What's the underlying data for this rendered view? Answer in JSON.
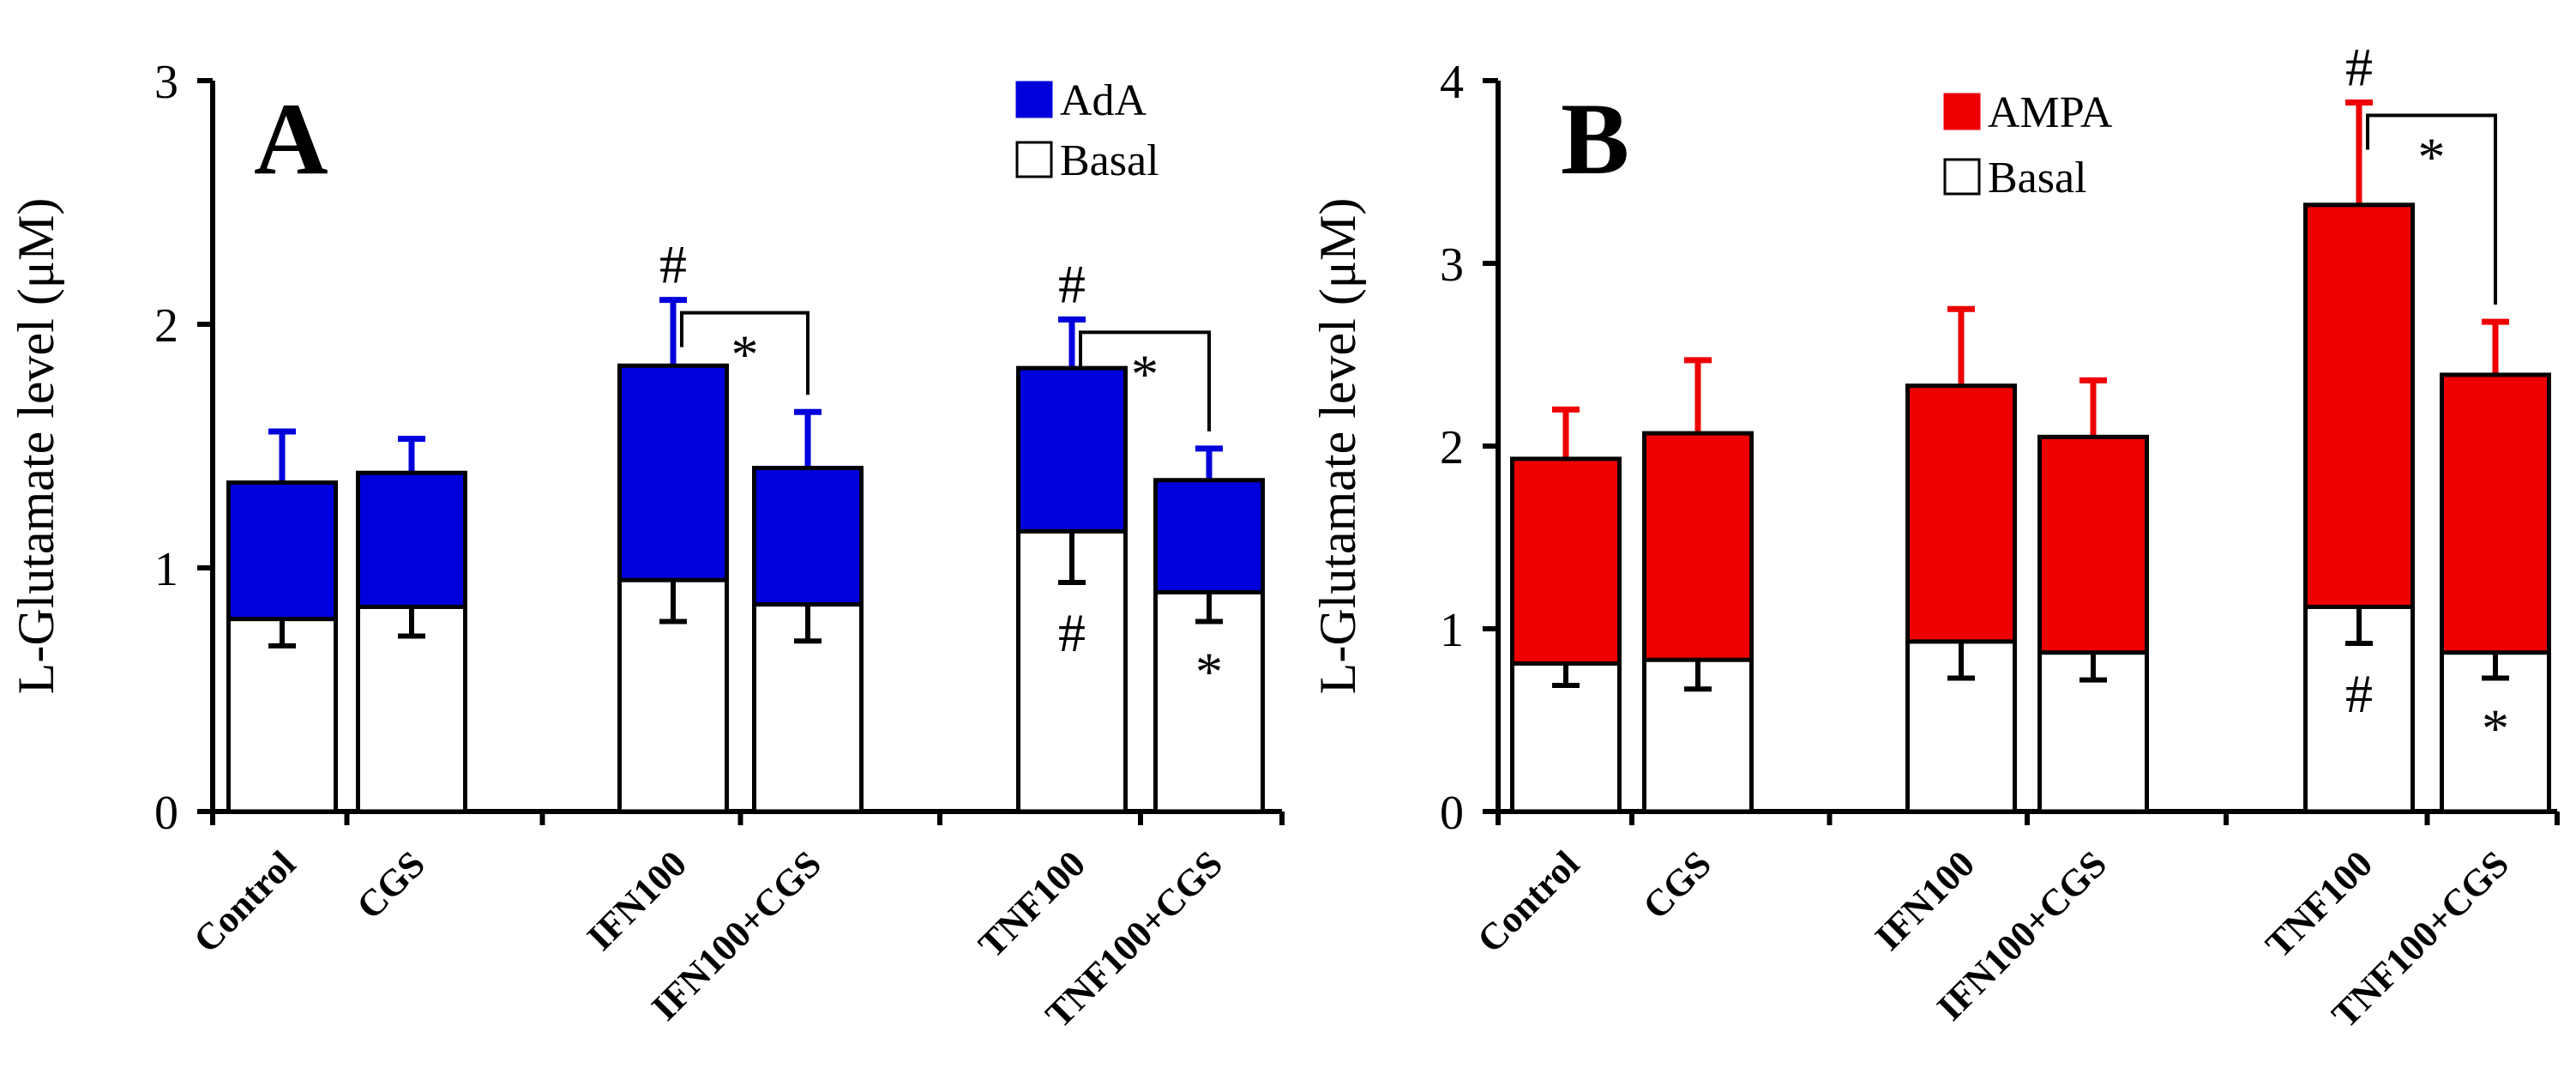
{
  "chart_data": [
    {
      "type": "bar",
      "panel_label": "A",
      "ylabel": "L-Glutamate level (μM)",
      "ylim": [
        0,
        3
      ],
      "yticks": [
        "0",
        "1",
        "2",
        "3"
      ],
      "categories": [
        "Control",
        "CGS",
        "IFN100",
        "IFN100+CGS",
        "TNF100",
        "TNF100+CGS"
      ],
      "category_groups": [
        [
          0,
          1
        ],
        [
          2,
          3
        ],
        [
          4,
          5
        ]
      ],
      "stacked": false,
      "overlaid": true,
      "legend": [
        {
          "name": "AdA",
          "color": "#0000dd"
        },
        {
          "name": "Basal",
          "color": "#ffffff"
        }
      ],
      "legend_position": "top-right",
      "series": [
        {
          "name": "AdA",
          "color": "#0000dd",
          "values": [
            1.35,
            1.39,
            1.83,
            1.41,
            1.82,
            1.36
          ],
          "error_upper": [
            1.56,
            1.53,
            2.1,
            1.64,
            2.02,
            1.49
          ]
        },
        {
          "name": "Basal",
          "color": "#ffffff",
          "values": [
            0.79,
            0.84,
            0.95,
            0.85,
            1.15,
            0.9
          ],
          "error_lower": [
            0.68,
            0.72,
            0.78,
            0.7,
            0.94,
            0.78
          ]
        }
      ],
      "annotations": [
        {
          "text": "#",
          "category": 2,
          "anchor": "above-error",
          "series": "AdA"
        },
        {
          "text": "#",
          "category": 4,
          "anchor": "above-error",
          "series": "AdA"
        },
        {
          "text": "#",
          "category": 4,
          "anchor": "inside-basal",
          "series": "Basal"
        },
        {
          "text": "*",
          "category": 5,
          "anchor": "inside-basal",
          "series": "Basal"
        },
        {
          "text": "*",
          "bracket": [
            2,
            3
          ],
          "level": 2.1
        },
        {
          "text": "*",
          "bracket": [
            4,
            5
          ],
          "level": 2.02
        }
      ]
    },
    {
      "type": "bar",
      "panel_label": "B",
      "ylabel": "L-Glutamate level (μM)",
      "ylim": [
        0,
        4
      ],
      "yticks": [
        "0",
        "1",
        "2",
        "3",
        "4"
      ],
      "categories": [
        "Control",
        "CGS",
        "IFN100",
        "IFN100+CGS",
        "TNF100",
        "TNF100+CGS"
      ],
      "category_groups": [
        [
          0,
          1
        ],
        [
          2,
          3
        ],
        [
          4,
          5
        ]
      ],
      "stacked": false,
      "overlaid": true,
      "legend": [
        {
          "name": "AMPA",
          "color": "#ee0000"
        },
        {
          "name": "Basal",
          "color": "#ffffff"
        }
      ],
      "legend_position": "top-center",
      "series": [
        {
          "name": "AMPA",
          "color": "#ee0000",
          "values": [
            1.93,
            2.07,
            2.33,
            2.05,
            3.32,
            2.39
          ],
          "error_upper": [
            2.2,
            2.47,
            2.75,
            2.36,
            3.88,
            2.68
          ]
        },
        {
          "name": "Basal",
          "color": "#ffffff",
          "values": [
            0.81,
            0.83,
            0.93,
            0.87,
            1.12,
            0.87
          ],
          "error_lower": [
            0.69,
            0.67,
            0.73,
            0.72,
            0.92,
            0.73
          ]
        }
      ],
      "annotations": [
        {
          "text": "#",
          "category": 4,
          "anchor": "above-error",
          "series": "AMPA"
        },
        {
          "text": "#",
          "category": 4,
          "anchor": "inside-basal",
          "series": "Basal"
        },
        {
          "text": "*",
          "category": 5,
          "anchor": "inside-basal",
          "series": "Basal"
        },
        {
          "text": "*",
          "bracket": [
            4,
            5
          ],
          "level": 3.88
        }
      ]
    }
  ]
}
